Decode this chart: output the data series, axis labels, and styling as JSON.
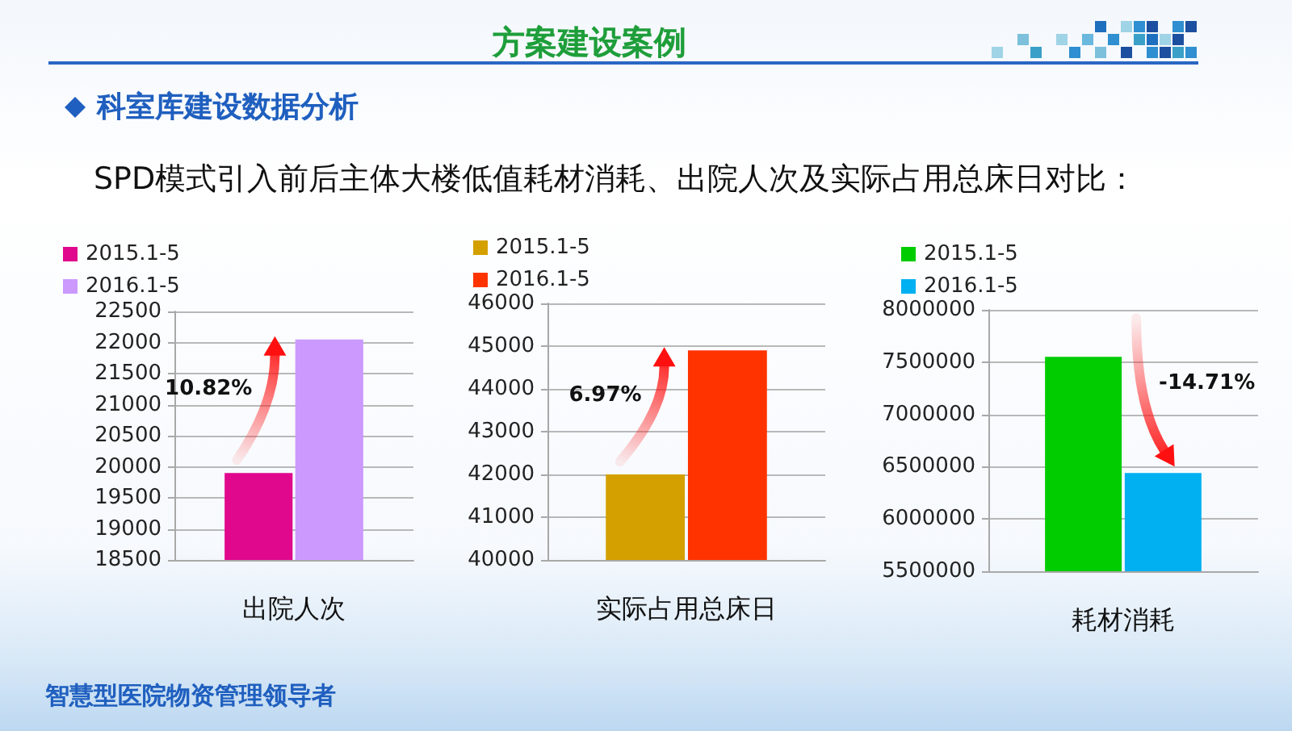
{
  "chart_data": [
    {
      "type": "other",
      "title": "方案建设案例",
      "subtitle": "科室库建设数据分析",
      "annotations": [
        "SPD模式引入前后主体大楼低值耗材消耗、出院人次及实际占用总床日对比：",
        "智慧型医院物资管理领导者"
      ]
    },
    {
      "type": "bar",
      "categories": [
        "出院人次"
      ],
      "series": [
        {
          "name": "2015.1-5",
          "color": "#e0088c",
          "values": [
            19900
          ]
        },
        {
          "name": "2016.1-5",
          "color": "#cc99ff",
          "values": [
            22050
          ]
        }
      ],
      "ylim": [
        18500,
        22500
      ],
      "yticks": [
        18500,
        19000,
        19500,
        20000,
        20500,
        21000,
        21500,
        22000,
        22500
      ],
      "grid": "y",
      "legend": "top left",
      "annotations": [
        "10.82%"
      ]
    },
    {
      "type": "bar",
      "categories": [
        "实际占用总床日"
      ],
      "series": [
        {
          "name": "2015.1-5",
          "color": "#d4a000",
          "values": [
            42000
          ]
        },
        {
          "name": "2016.1-5",
          "color": "#ff3300",
          "values": [
            44900
          ]
        }
      ],
      "ylim": [
        40000,
        46000
      ],
      "yticks": [
        40000,
        41000,
        42000,
        43000,
        44000,
        45000,
        46000
      ],
      "grid": "y",
      "legend": "top left",
      "annotations": [
        "6.97%"
      ]
    },
    {
      "type": "bar",
      "categories": [
        "耗材消耗"
      ],
      "series": [
        {
          "name": "2015.1-5",
          "color": "#00cc00",
          "values": [
            7550000
          ]
        },
        {
          "name": "2016.1-5",
          "color": "#00b0f0",
          "values": [
            6440000
          ]
        }
      ],
      "ylim": [
        5500000,
        8000000
      ],
      "yticks": [
        5500000,
        6000000,
        6500000,
        7000000,
        7500000,
        8000000
      ],
      "grid": "y",
      "legend": "top left",
      "annotations": [
        "-14.71%"
      ]
    }
  ]
}
